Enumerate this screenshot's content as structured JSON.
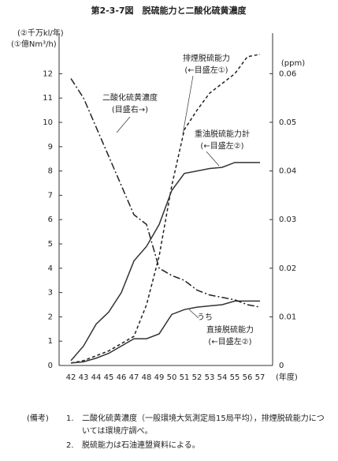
{
  "chart_data": {
    "type": "line",
    "title": "第2-3-7図　脱硫能力と二酸化硫黄濃度",
    "y_label_lines": [
      "(②千万kl/年)",
      "(①億Nm³/h)"
    ],
    "y2_label": "(ppm)",
    "x_label": "(年度)",
    "categories": [
      "42",
      "43",
      "44",
      "45",
      "46",
      "47",
      "48",
      "49",
      "50",
      "51",
      "52",
      "53",
      "54",
      "55",
      "56",
      "57"
    ],
    "ylim": [
      0,
      13.67
    ],
    "yticks": [
      0,
      1,
      2,
      3,
      4,
      5,
      6,
      7,
      8,
      9,
      10,
      11,
      12
    ],
    "y2lim": [
      0,
      0.06833
    ],
    "y2ticks": [
      0,
      0.01,
      0.02,
      0.03,
      0.04,
      0.05,
      0.06
    ],
    "series": [
      {
        "name": "排煙脱硫能力",
        "label_lines": [
          "(←目盛左①)"
        ],
        "color": "#222",
        "dash": "4,3",
        "values": [
          0.1,
          0.2,
          0.4,
          0.6,
          0.9,
          1.2,
          2.5,
          4.5,
          7.4,
          9.7,
          10.5,
          11.2,
          11.6,
          12.0,
          12.7,
          12.8
        ]
      },
      {
        "name": "重油脱硫能力計",
        "label_lines": [
          "(←目盛左②)"
        ],
        "color": "#333",
        "dash": "none",
        "values": [
          0.2,
          0.8,
          1.7,
          2.2,
          3.0,
          4.3,
          4.9,
          5.8,
          7.2,
          7.9,
          8.0,
          8.1,
          8.15,
          8.35,
          8.35,
          8.35
        ]
      },
      {
        "name": "直接脱硫能力",
        "prefix": "うち",
        "label_lines": [
          "(←目盛左②)"
        ],
        "color": "#333",
        "dash": "none",
        "values": [
          0.1,
          0.15,
          0.3,
          0.5,
          0.8,
          1.1,
          1.1,
          1.3,
          2.1,
          2.3,
          2.4,
          2.45,
          2.5,
          2.65,
          2.65,
          2.65
        ]
      },
      {
        "name": "二酸化硫黄濃度",
        "label_lines": [
          "(目盛右→)"
        ],
        "color": "#222",
        "dash": "9,3,2,3",
        "axis": "y2",
        "values": [
          0.059,
          0.055,
          0.049,
          0.043,
          0.037,
          0.031,
          0.029,
          0.02,
          0.0185,
          0.0175,
          0.0155,
          0.0145,
          0.014,
          0.0135,
          0.0125,
          0.012
        ]
      }
    ]
  },
  "notes": {
    "head": "(備考)",
    "items": [
      {
        "num": "1.",
        "lines": [
          "二酸化硫黄濃度（一般環境大気測定局15局平均），排煙脱硫能力につ",
          "いては環境庁調べ。"
        ]
      },
      {
        "num": "2.",
        "lines": [
          "脱硫能力は石油連盟資料による。"
        ]
      }
    ]
  }
}
